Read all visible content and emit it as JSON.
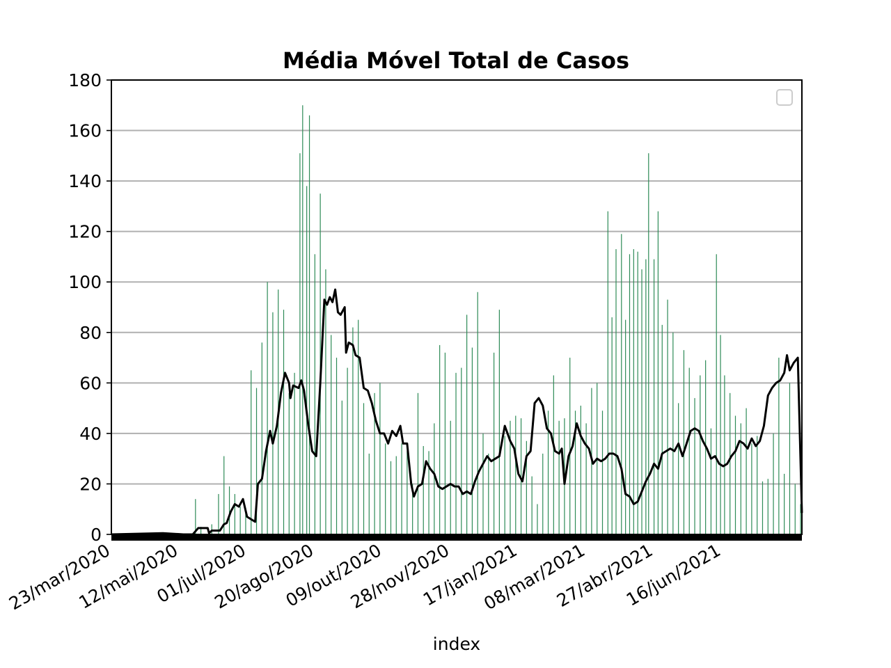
{
  "chart_data": {
    "type": "bar",
    "title": "Média Móvel Total de Casos",
    "xlabel": "index",
    "ylabel": "",
    "ylim": [
      0,
      180
    ],
    "yticks": [
      0,
      20,
      40,
      60,
      80,
      100,
      120,
      140,
      160,
      180
    ],
    "grid": "horizontal",
    "legend": "top-right (empty)",
    "x_start": "2020-03-23",
    "x_end": "2021-08-14",
    "xtick_labels": [
      "23/mar/2020",
      "12/mai/2020",
      "01/jul/2020",
      "20/ago/2020",
      "09/out/2020",
      "28/nov/2020",
      "17/jan/2021",
      "08/mar/2021",
      "27/abr/2021",
      "16/jun/2021"
    ],
    "xtick_dates": [
      "2020-03-23",
      "2020-05-12",
      "2020-07-01",
      "2020-08-20",
      "2020-10-09",
      "2020-11-28",
      "2021-01-17",
      "2021-03-08",
      "2021-04-27",
      "2021-06-16"
    ],
    "series": [
      {
        "kind": "bar",
        "color": "#2e8b57",
        "description": "daily cases",
        "points": [
          [
            "2020-05-18",
            0
          ],
          [
            "2020-05-24",
            14
          ],
          [
            "2020-05-28",
            3
          ],
          [
            "2020-06-05",
            4
          ],
          [
            "2020-06-10",
            16
          ],
          [
            "2020-06-14",
            31
          ],
          [
            "2020-06-18",
            19
          ],
          [
            "2020-06-22",
            16
          ],
          [
            "2020-06-26",
            11
          ],
          [
            "2020-06-30",
            9
          ],
          [
            "2020-07-04",
            65
          ],
          [
            "2020-07-08",
            58
          ],
          [
            "2020-07-12",
            76
          ],
          [
            "2020-07-16",
            100
          ],
          [
            "2020-07-20",
            88
          ],
          [
            "2020-07-24",
            97
          ],
          [
            "2020-07-28",
            89
          ],
          [
            "2020-08-01",
            56
          ],
          [
            "2020-08-05",
            64
          ],
          [
            "2020-08-09",
            151
          ],
          [
            "2020-08-11",
            170
          ],
          [
            "2020-08-14",
            138
          ],
          [
            "2020-08-16",
            166
          ],
          [
            "2020-08-20",
            111
          ],
          [
            "2020-08-24",
            135
          ],
          [
            "2020-08-28",
            105
          ],
          [
            "2020-09-01",
            79
          ],
          [
            "2020-09-05",
            70
          ],
          [
            "2020-09-09",
            53
          ],
          [
            "2020-09-13",
            66
          ],
          [
            "2020-09-17",
            82
          ],
          [
            "2020-09-21",
            85
          ],
          [
            "2020-09-25",
            52
          ],
          [
            "2020-09-29",
            32
          ],
          [
            "2020-10-03",
            56
          ],
          [
            "2020-10-07",
            60
          ],
          [
            "2020-10-11",
            36
          ],
          [
            "2020-10-15",
            29
          ],
          [
            "2020-10-19",
            31
          ],
          [
            "2020-10-23",
            36
          ],
          [
            "2020-10-27",
            33
          ],
          [
            "2020-10-31",
            20
          ],
          [
            "2020-11-04",
            56
          ],
          [
            "2020-11-08",
            35
          ],
          [
            "2020-11-12",
            33
          ],
          [
            "2020-11-16",
            44
          ],
          [
            "2020-11-20",
            75
          ],
          [
            "2020-11-24",
            72
          ],
          [
            "2020-11-28",
            45
          ],
          [
            "2020-12-02",
            64
          ],
          [
            "2020-12-06",
            66
          ],
          [
            "2020-12-10",
            87
          ],
          [
            "2020-12-14",
            74
          ],
          [
            "2020-12-18",
            96
          ],
          [
            "2020-12-22",
            40
          ],
          [
            "2020-12-26",
            32
          ],
          [
            "2020-12-30",
            72
          ],
          [
            "2021-01-03",
            89
          ],
          [
            "2021-01-07",
            39
          ],
          [
            "2021-01-11",
            45
          ],
          [
            "2021-01-15",
            47
          ],
          [
            "2021-01-19",
            46
          ],
          [
            "2021-01-23",
            37
          ],
          [
            "2021-01-27",
            23
          ],
          [
            "2021-01-31",
            12
          ],
          [
            "2021-02-04",
            32
          ],
          [
            "2021-02-08",
            49
          ],
          [
            "2021-02-12",
            63
          ],
          [
            "2021-02-16",
            45
          ],
          [
            "2021-02-20",
            46
          ],
          [
            "2021-02-24",
            70
          ],
          [
            "2021-02-28",
            49
          ],
          [
            "2021-03-04",
            51
          ],
          [
            "2021-03-08",
            44
          ],
          [
            "2021-03-12",
            58
          ],
          [
            "2021-03-16",
            60
          ],
          [
            "2021-03-20",
            49
          ],
          [
            "2021-03-24",
            128
          ],
          [
            "2021-03-27",
            86
          ],
          [
            "2021-03-30",
            113
          ],
          [
            "2021-04-03",
            119
          ],
          [
            "2021-04-06",
            85
          ],
          [
            "2021-04-09",
            111
          ],
          [
            "2021-04-12",
            113
          ],
          [
            "2021-04-15",
            112
          ],
          [
            "2021-04-18",
            105
          ],
          [
            "2021-04-21",
            109
          ],
          [
            "2021-04-23",
            151
          ],
          [
            "2021-04-27",
            109
          ],
          [
            "2021-04-30",
            128
          ],
          [
            "2021-05-03",
            83
          ],
          [
            "2021-05-07",
            93
          ],
          [
            "2021-05-11",
            80
          ],
          [
            "2021-05-15",
            52
          ],
          [
            "2021-05-19",
            73
          ],
          [
            "2021-05-23",
            66
          ],
          [
            "2021-05-27",
            54
          ],
          [
            "2021-05-31",
            63
          ],
          [
            "2021-06-04",
            69
          ],
          [
            "2021-06-08",
            42
          ],
          [
            "2021-06-12",
            111
          ],
          [
            "2021-06-15",
            79
          ],
          [
            "2021-06-18",
            63
          ],
          [
            "2021-06-22",
            56
          ],
          [
            "2021-06-26",
            47
          ],
          [
            "2021-06-30",
            44
          ],
          [
            "2021-07-04",
            50
          ],
          [
            "2021-07-08",
            36
          ],
          [
            "2021-07-12",
            39
          ],
          [
            "2021-07-16",
            21
          ],
          [
            "2021-07-20",
            22
          ],
          [
            "2021-07-24",
            40
          ],
          [
            "2021-07-28",
            70
          ],
          [
            "2021-08-01",
            24
          ],
          [
            "2021-08-05",
            60
          ],
          [
            "2021-08-09",
            20
          ],
          [
            "2021-08-13",
            12
          ]
        ]
      },
      {
        "kind": "line",
        "color": "#000000",
        "description": "moving average",
        "points": [
          [
            "2020-03-23",
            0
          ],
          [
            "2020-04-30",
            0.5
          ],
          [
            "2020-05-15",
            0
          ],
          [
            "2020-05-22",
            0
          ],
          [
            "2020-05-26",
            2.5
          ],
          [
            "2020-06-02",
            2.5
          ],
          [
            "2020-06-03",
            0.5
          ],
          [
            "2020-06-05",
            1.5
          ],
          [
            "2020-06-11",
            1.5
          ],
          [
            "2020-06-14",
            4
          ],
          [
            "2020-06-16",
            4.5
          ],
          [
            "2020-06-19",
            9
          ],
          [
            "2020-06-22",
            12
          ],
          [
            "2020-06-25",
            11
          ],
          [
            "2020-06-28",
            14
          ],
          [
            "2020-07-01",
            7
          ],
          [
            "2020-07-04",
            6
          ],
          [
            "2020-07-07",
            5
          ],
          [
            "2020-07-09",
            20
          ],
          [
            "2020-07-12",
            22
          ],
          [
            "2020-07-15",
            33
          ],
          [
            "2020-07-18",
            41
          ],
          [
            "2020-07-20",
            36
          ],
          [
            "2020-07-23",
            43
          ],
          [
            "2020-07-26",
            56
          ],
          [
            "2020-07-29",
            64
          ],
          [
            "2020-08-01",
            60
          ],
          [
            "2020-08-02",
            54
          ],
          [
            "2020-08-04",
            59
          ],
          [
            "2020-08-08",
            58
          ],
          [
            "2020-08-10",
            61
          ],
          [
            "2020-08-12",
            57
          ],
          [
            "2020-08-15",
            44
          ],
          [
            "2020-08-18",
            33
          ],
          [
            "2020-08-21",
            31
          ],
          [
            "2020-08-24",
            60
          ],
          [
            "2020-08-27",
            93
          ],
          [
            "2020-08-29",
            91
          ],
          [
            "2020-08-31",
            94
          ],
          [
            "2020-09-02",
            92
          ],
          [
            "2020-09-04",
            97
          ],
          [
            "2020-09-06",
            88
          ],
          [
            "2020-09-08",
            87
          ],
          [
            "2020-09-11",
            90
          ],
          [
            "2020-09-12",
            72
          ],
          [
            "2020-09-14",
            76
          ],
          [
            "2020-09-17",
            75
          ],
          [
            "2020-09-19",
            71
          ],
          [
            "2020-09-22",
            70
          ],
          [
            "2020-09-25",
            58
          ],
          [
            "2020-09-28",
            57
          ],
          [
            "2020-10-01",
            52
          ],
          [
            "2020-10-04",
            45
          ],
          [
            "2020-10-07",
            40
          ],
          [
            "2020-10-10",
            40
          ],
          [
            "2020-10-13",
            36
          ],
          [
            "2020-10-16",
            41
          ],
          [
            "2020-10-19",
            39
          ],
          [
            "2020-10-22",
            43
          ],
          [
            "2020-10-24",
            36
          ],
          [
            "2020-10-27",
            36
          ],
          [
            "2020-10-30",
            20
          ],
          [
            "2020-11-01",
            15
          ],
          [
            "2020-11-04",
            19
          ],
          [
            "2020-11-07",
            20
          ],
          [
            "2020-11-10",
            29
          ],
          [
            "2020-11-13",
            26
          ],
          [
            "2020-11-16",
            24
          ],
          [
            "2020-11-19",
            19
          ],
          [
            "2020-11-22",
            18
          ],
          [
            "2020-11-25",
            19
          ],
          [
            "2020-11-28",
            20
          ],
          [
            "2020-12-01",
            19
          ],
          [
            "2020-12-04",
            19
          ],
          [
            "2020-12-07",
            16
          ],
          [
            "2020-12-10",
            17
          ],
          [
            "2020-12-13",
            16
          ],
          [
            "2020-12-16",
            21
          ],
          [
            "2020-12-19",
            25
          ],
          [
            "2020-12-22",
            28
          ],
          [
            "2020-12-25",
            31
          ],
          [
            "2020-12-28",
            29
          ],
          [
            "2020-12-31",
            30
          ],
          [
            "2021-01-03",
            31
          ],
          [
            "2021-01-07",
            43
          ],
          [
            "2021-01-11",
            37
          ],
          [
            "2021-01-14",
            34
          ],
          [
            "2021-01-17",
            24
          ],
          [
            "2021-01-20",
            21
          ],
          [
            "2021-01-23",
            31
          ],
          [
            "2021-01-26",
            33
          ],
          [
            "2021-01-29",
            52
          ],
          [
            "2021-02-01",
            54
          ],
          [
            "2021-02-04",
            51
          ],
          [
            "2021-02-07",
            42
          ],
          [
            "2021-02-10",
            40
          ],
          [
            "2021-02-13",
            33
          ],
          [
            "2021-02-16",
            32
          ],
          [
            "2021-02-18",
            34
          ],
          [
            "2021-02-20",
            20
          ],
          [
            "2021-02-23",
            31
          ],
          [
            "2021-02-26",
            35
          ],
          [
            "2021-03-01",
            44
          ],
          [
            "2021-03-04",
            39
          ],
          [
            "2021-03-07",
            36
          ],
          [
            "2021-03-10",
            34
          ],
          [
            "2021-03-13",
            28
          ],
          [
            "2021-03-16",
            30
          ],
          [
            "2021-03-19",
            29
          ],
          [
            "2021-03-22",
            30
          ],
          [
            "2021-03-25",
            32
          ],
          [
            "2021-03-28",
            32
          ],
          [
            "2021-03-31",
            31
          ],
          [
            "2021-04-03",
            26
          ],
          [
            "2021-04-06",
            16
          ],
          [
            "2021-04-09",
            15
          ],
          [
            "2021-04-12",
            12
          ],
          [
            "2021-04-15",
            13
          ],
          [
            "2021-04-18",
            17
          ],
          [
            "2021-04-21",
            21
          ],
          [
            "2021-04-24",
            24
          ],
          [
            "2021-04-27",
            28
          ],
          [
            "2021-04-30",
            26
          ],
          [
            "2021-05-03",
            32
          ],
          [
            "2021-05-06",
            33
          ],
          [
            "2021-05-09",
            34
          ],
          [
            "2021-05-12",
            33
          ],
          [
            "2021-05-15",
            36
          ],
          [
            "2021-05-18",
            31
          ],
          [
            "2021-05-21",
            36
          ],
          [
            "2021-05-24",
            41
          ],
          [
            "2021-05-27",
            42
          ],
          [
            "2021-05-30",
            41
          ],
          [
            "2021-06-02",
            37
          ],
          [
            "2021-06-05",
            34
          ],
          [
            "2021-06-08",
            30
          ],
          [
            "2021-06-11",
            31
          ],
          [
            "2021-06-14",
            28
          ],
          [
            "2021-06-17",
            27
          ],
          [
            "2021-06-20",
            28
          ],
          [
            "2021-06-23",
            31
          ],
          [
            "2021-06-26",
            33
          ],
          [
            "2021-06-29",
            37
          ],
          [
            "2021-07-02",
            36
          ],
          [
            "2021-07-05",
            34
          ],
          [
            "2021-07-08",
            38
          ],
          [
            "2021-07-11",
            35
          ],
          [
            "2021-07-14",
            37
          ],
          [
            "2021-07-17",
            43
          ],
          [
            "2021-07-20",
            55
          ],
          [
            "2021-07-23",
            58
          ],
          [
            "2021-07-26",
            60
          ],
          [
            "2021-07-29",
            61
          ],
          [
            "2021-08-01",
            64
          ],
          [
            "2021-08-03",
            71
          ],
          [
            "2021-08-05",
            65
          ],
          [
            "2021-08-08",
            68
          ],
          [
            "2021-08-11",
            70
          ],
          [
            "2021-08-14",
            8.5
          ]
        ]
      }
    ]
  }
}
